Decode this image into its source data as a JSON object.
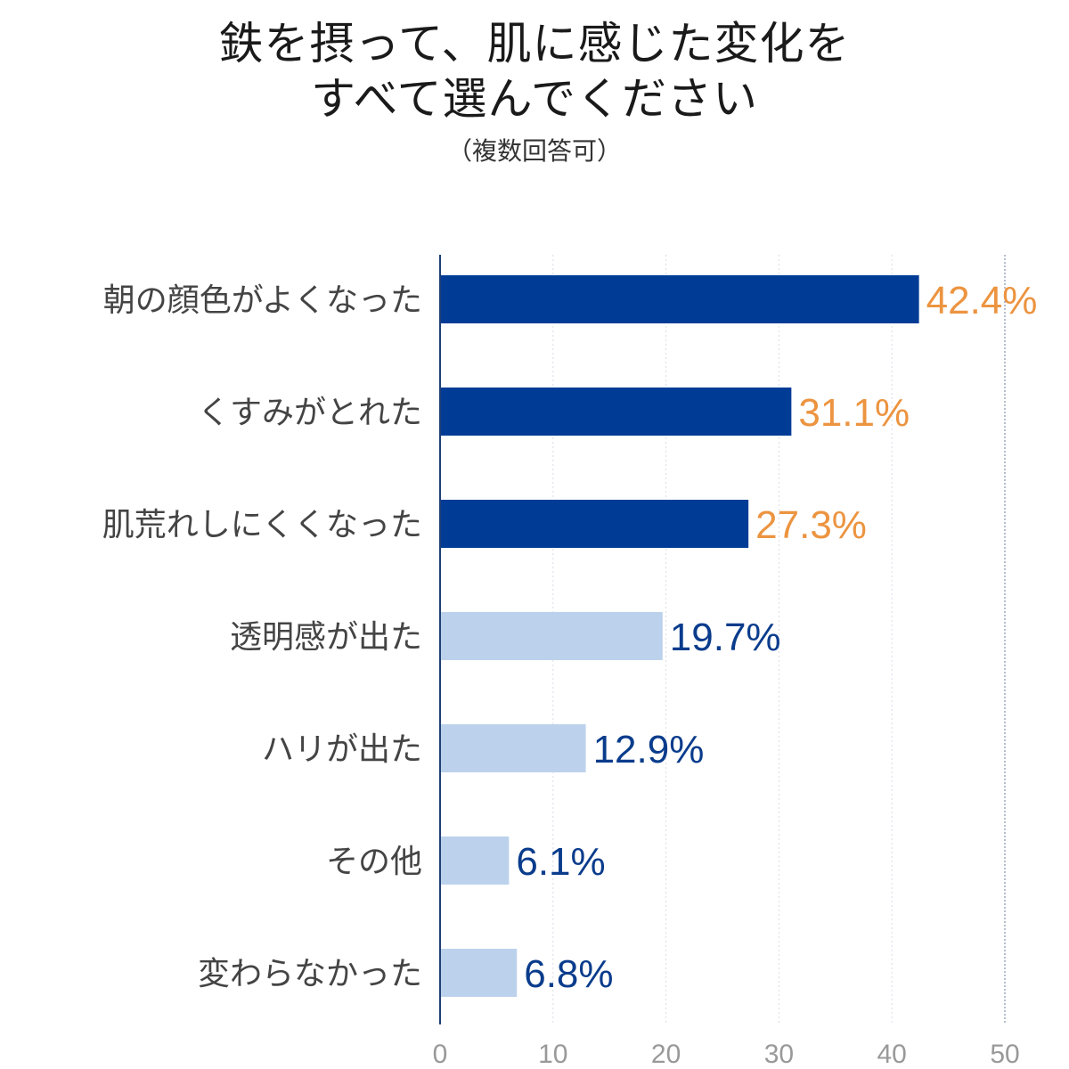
{
  "chart_data": {
    "type": "bar",
    "orientation": "horizontal",
    "title_lines": [
      "鉄を摂って、肌に感じた変化を",
      "すべて選んでください"
    ],
    "subtitle": "（複数回答可）",
    "categories": [
      "朝の顔色がよくなった",
      "くすみがとれた",
      "肌荒れしにくくなった",
      "透明感が出た",
      "ハリが出た",
      "その他",
      "変わらなかった"
    ],
    "values": [
      42.4,
      31.1,
      27.3,
      19.7,
      12.9,
      6.1,
      6.8
    ],
    "value_labels": [
      "42.4%",
      "31.1%",
      "27.3%",
      "19.7%",
      "12.9%",
      "6.1%",
      "6.8%"
    ],
    "highlight": [
      true,
      true,
      true,
      false,
      false,
      false,
      false
    ],
    "xlim": [
      0,
      50
    ],
    "xticks": [
      0,
      10,
      20,
      30,
      40,
      50
    ],
    "grid": true,
    "xlabel": "",
    "ylabel": ""
  },
  "colors": {
    "bar_highlight": "#003c96",
    "bar_normal": "#bcd2ec",
    "label_highlight": "#ec9440",
    "label_normal": "#0a3c8c",
    "axis": "#1f3f73",
    "grid": "#d8dde6",
    "grid_end": "#6b7d99"
  }
}
